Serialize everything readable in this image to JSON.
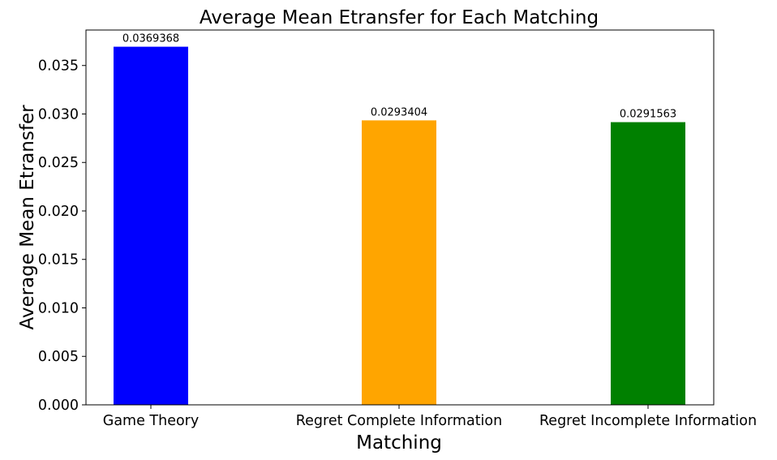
{
  "chart_data": {
    "type": "bar",
    "title": "Average Mean Etransfer for Each Matching",
    "xlabel": "Matching",
    "ylabel": "Average Mean Etransfer",
    "categories": [
      "Game Theory",
      "Regret Complete Information",
      "Regret Incomplete Information"
    ],
    "values": [
      0.0369368,
      0.0293404,
      0.0291563
    ],
    "value_labels": [
      "0.0369368",
      "0.0293404",
      "0.0291563"
    ],
    "colors": [
      "#0000ff",
      "#ffa500",
      "#008000"
    ],
    "ylim": [
      0,
      0.03866
    ],
    "yticks": [
      0.0,
      0.005,
      0.01,
      0.015,
      0.02,
      0.025,
      0.03,
      0.035
    ],
    "ytick_labels": [
      "0.000",
      "0.005",
      "0.010",
      "0.015",
      "0.020",
      "0.025",
      "0.030",
      "0.035"
    ],
    "grid": false,
    "legend": false
  }
}
